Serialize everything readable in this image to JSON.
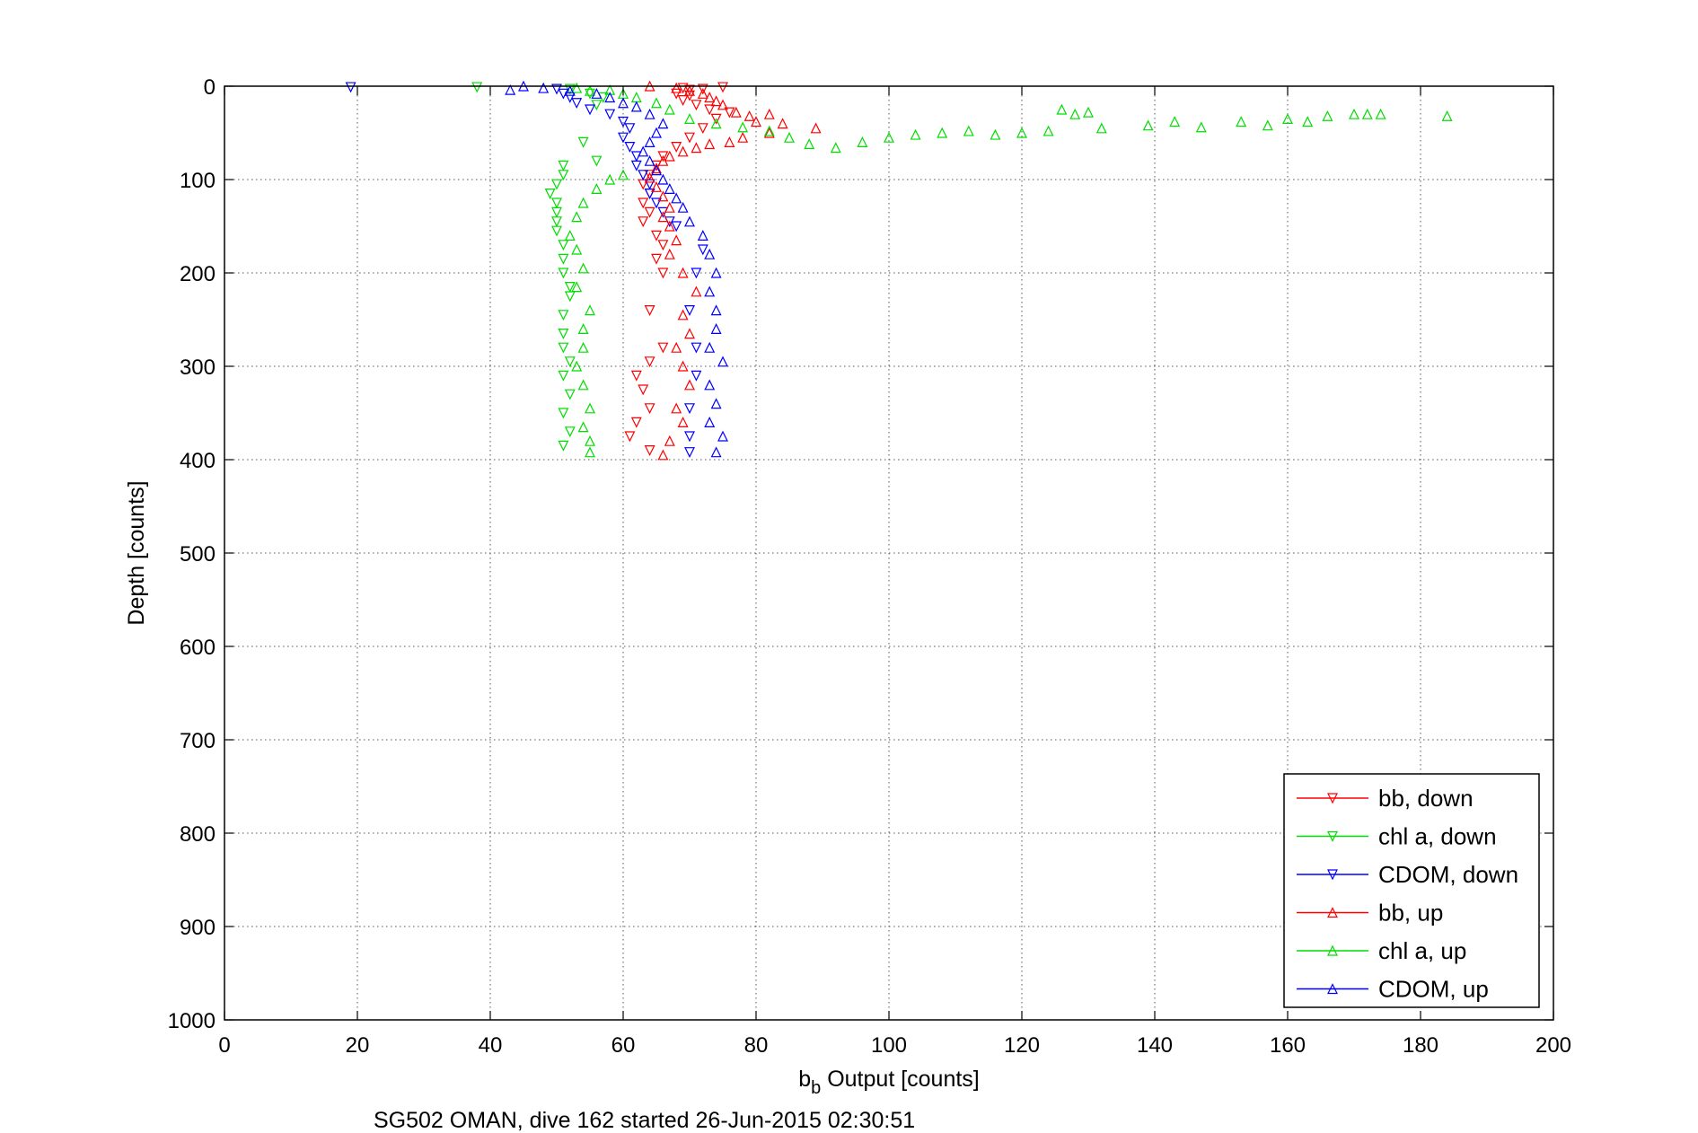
{
  "chart_data": {
    "type": "scatter",
    "xlabel_main": "b",
    "xlabel_sub": "b",
    "xlabel_rest": " Output [counts]",
    "ylabel": "Depth [counts]",
    "caption": "SG502 OMAN, dive 162 started 26-Jun-2015 02:30:51",
    "xlim": [
      0,
      200
    ],
    "ylim": [
      0,
      1000
    ],
    "y_reversed": true,
    "x_ticks": [
      0,
      20,
      40,
      60,
      80,
      100,
      120,
      140,
      160,
      180,
      200
    ],
    "y_ticks": [
      0,
      100,
      200,
      300,
      400,
      500,
      600,
      700,
      800,
      900,
      1000
    ],
    "x_tick_labels": [
      "0",
      "20",
      "40",
      "60",
      "80",
      "100",
      "120",
      "140",
      "160",
      "180",
      "200"
    ],
    "y_tick_labels": [
      "0",
      "100",
      "200",
      "300",
      "400",
      "500",
      "600",
      "700",
      "800",
      "900",
      "1000"
    ],
    "grid": true,
    "legend_position": "bottom-right",
    "series": [
      {
        "name": "bb, down",
        "color": "#ff0000",
        "marker": "triangle-down",
        "points": [
          [
            69,
            2
          ],
          [
            70,
            4
          ],
          [
            72,
            3
          ],
          [
            75,
            1
          ],
          [
            68,
            8
          ],
          [
            70,
            10
          ],
          [
            69,
            15
          ],
          [
            71,
            20
          ],
          [
            73,
            25
          ],
          [
            76,
            28
          ],
          [
            74,
            35
          ],
          [
            72,
            45
          ],
          [
            70,
            55
          ],
          [
            68,
            65
          ],
          [
            66,
            75
          ],
          [
            65,
            85
          ],
          [
            64,
            95
          ],
          [
            63,
            105
          ],
          [
            64,
            115
          ],
          [
            63,
            125
          ],
          [
            64,
            135
          ],
          [
            63,
            145
          ],
          [
            65,
            160
          ],
          [
            66,
            170
          ],
          [
            65,
            185
          ],
          [
            66,
            200
          ],
          [
            64,
            240
          ],
          [
            66,
            280
          ],
          [
            64,
            295
          ],
          [
            62,
            310
          ],
          [
            63,
            325
          ],
          [
            64,
            345
          ],
          [
            62,
            360
          ],
          [
            61,
            375
          ],
          [
            64,
            390
          ]
        ]
      },
      {
        "name": "chl a, down",
        "color": "#00dd00",
        "marker": "triangle-down",
        "points": [
          [
            38,
            1
          ],
          [
            52,
            3
          ],
          [
            55,
            8
          ],
          [
            57,
            12
          ],
          [
            56,
            20
          ],
          [
            54,
            60
          ],
          [
            56,
            80
          ],
          [
            51,
            85
          ],
          [
            51,
            95
          ],
          [
            50,
            105
          ],
          [
            49,
            115
          ],
          [
            50,
            125
          ],
          [
            50,
            135
          ],
          [
            50,
            145
          ],
          [
            50,
            155
          ],
          [
            51,
            170
          ],
          [
            51,
            185
          ],
          [
            51,
            200
          ],
          [
            52,
            215
          ],
          [
            52,
            225
          ],
          [
            51,
            245
          ],
          [
            51,
            265
          ],
          [
            51,
            280
          ],
          [
            52,
            295
          ],
          [
            51,
            310
          ],
          [
            52,
            330
          ],
          [
            51,
            350
          ],
          [
            52,
            370
          ],
          [
            51,
            385
          ]
        ]
      },
      {
        "name": "CDOM, down",
        "color": "#0000ff",
        "marker": "triangle-down",
        "points": [
          [
            19,
            1
          ],
          [
            50,
            3
          ],
          [
            51,
            8
          ],
          [
            52,
            12
          ],
          [
            53,
            18
          ],
          [
            55,
            25
          ],
          [
            58,
            30
          ],
          [
            60,
            38
          ],
          [
            61,
            45
          ],
          [
            60,
            55
          ],
          [
            61,
            65
          ],
          [
            62,
            75
          ],
          [
            62,
            85
          ],
          [
            63,
            95
          ],
          [
            64,
            105
          ],
          [
            64,
            115
          ],
          [
            65,
            125
          ],
          [
            66,
            135
          ],
          [
            67,
            145
          ],
          [
            68,
            150
          ],
          [
            72,
            175
          ],
          [
            71,
            200
          ],
          [
            70,
            240
          ],
          [
            71,
            280
          ],
          [
            71,
            310
          ],
          [
            70,
            345
          ],
          [
            70,
            375
          ],
          [
            70,
            392
          ]
        ]
      },
      {
        "name": "bb, up",
        "color": "#ff0000",
        "marker": "triangle-up",
        "points": [
          [
            64,
            0
          ],
          [
            68,
            2
          ],
          [
            70,
            5
          ],
          [
            72,
            8
          ],
          [
            73,
            12
          ],
          [
            74,
            16
          ],
          [
            75,
            20
          ],
          [
            77,
            28
          ],
          [
            79,
            32
          ],
          [
            80,
            38
          ],
          [
            82,
            30
          ],
          [
            84,
            40
          ],
          [
            89,
            45
          ],
          [
            82,
            50
          ],
          [
            78,
            55
          ],
          [
            76,
            60
          ],
          [
            73,
            62
          ],
          [
            71,
            66
          ],
          [
            69,
            70
          ],
          [
            67,
            75
          ],
          [
            66,
            80
          ],
          [
            65,
            88
          ],
          [
            64,
            98
          ],
          [
            65,
            108
          ],
          [
            66,
            118
          ],
          [
            67,
            130
          ],
          [
            66,
            140
          ],
          [
            67,
            150
          ],
          [
            68,
            165
          ],
          [
            67,
            180
          ],
          [
            69,
            200
          ],
          [
            71,
            220
          ],
          [
            69,
            245
          ],
          [
            70,
            265
          ],
          [
            68,
            280
          ],
          [
            69,
            300
          ],
          [
            70,
            320
          ],
          [
            68,
            345
          ],
          [
            69,
            360
          ],
          [
            67,
            380
          ],
          [
            66,
            395
          ]
        ]
      },
      {
        "name": "chl a, up",
        "color": "#00dd00",
        "marker": "triangle-up",
        "points": [
          [
            53,
            2
          ],
          [
            55,
            5
          ],
          [
            58,
            4
          ],
          [
            60,
            8
          ],
          [
            62,
            12
          ],
          [
            65,
            18
          ],
          [
            67,
            25
          ],
          [
            70,
            35
          ],
          [
            74,
            40
          ],
          [
            78,
            44
          ],
          [
            82,
            48
          ],
          [
            85,
            55
          ],
          [
            88,
            62
          ],
          [
            92,
            66
          ],
          [
            96,
            60
          ],
          [
            100,
            55
          ],
          [
            104,
            52
          ],
          [
            108,
            50
          ],
          [
            112,
            48
          ],
          [
            116,
            52
          ],
          [
            120,
            50
          ],
          [
            124,
            48
          ],
          [
            126,
            25
          ],
          [
            128,
            30
          ],
          [
            130,
            28
          ],
          [
            132,
            45
          ],
          [
            139,
            42
          ],
          [
            143,
            38
          ],
          [
            147,
            44
          ],
          [
            153,
            38
          ],
          [
            157,
            42
          ],
          [
            160,
            35
          ],
          [
            163,
            38
          ],
          [
            166,
            32
          ],
          [
            170,
            30
          ],
          [
            172,
            30
          ],
          [
            174,
            30
          ],
          [
            184,
            32
          ],
          [
            60,
            95
          ],
          [
            58,
            100
          ],
          [
            56,
            110
          ],
          [
            54,
            125
          ],
          [
            53,
            140
          ],
          [
            52,
            160
          ],
          [
            53,
            175
          ],
          [
            54,
            195
          ],
          [
            53,
            215
          ],
          [
            55,
            240
          ],
          [
            54,
            260
          ],
          [
            54,
            280
          ],
          [
            53,
            300
          ],
          [
            54,
            320
          ],
          [
            55,
            345
          ],
          [
            54,
            365
          ],
          [
            55,
            380
          ],
          [
            55,
            392
          ]
        ]
      },
      {
        "name": "CDOM, up",
        "color": "#0000ff",
        "marker": "triangle-up",
        "points": [
          [
            45,
            0
          ],
          [
            43,
            4
          ],
          [
            48,
            2
          ],
          [
            52,
            5
          ],
          [
            56,
            8
          ],
          [
            58,
            12
          ],
          [
            60,
            18
          ],
          [
            62,
            22
          ],
          [
            64,
            30
          ],
          [
            66,
            40
          ],
          [
            65,
            50
          ],
          [
            64,
            60
          ],
          [
            63,
            70
          ],
          [
            64,
            80
          ],
          [
            65,
            90
          ],
          [
            66,
            100
          ],
          [
            67,
            110
          ],
          [
            68,
            120
          ],
          [
            69,
            130
          ],
          [
            70,
            145
          ],
          [
            72,
            160
          ],
          [
            73,
            180
          ],
          [
            74,
            200
          ],
          [
            73,
            220
          ],
          [
            74,
            240
          ],
          [
            74,
            260
          ],
          [
            73,
            280
          ],
          [
            75,
            295
          ],
          [
            73,
            320
          ],
          [
            74,
            340
          ],
          [
            73,
            360
          ],
          [
            75,
            375
          ],
          [
            74,
            392
          ]
        ]
      }
    ]
  }
}
